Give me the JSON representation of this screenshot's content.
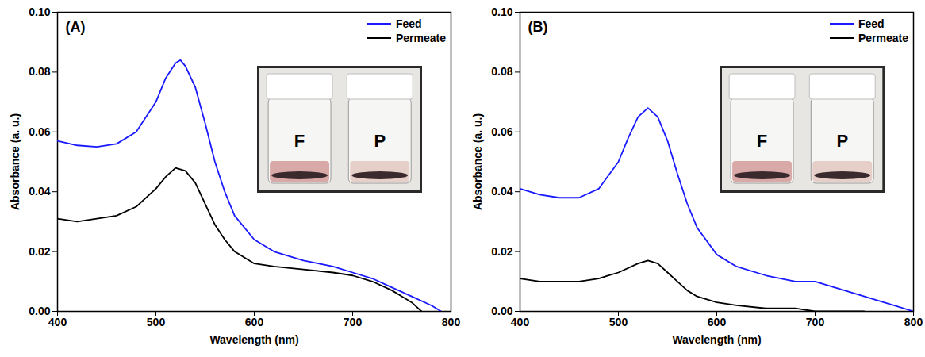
{
  "chart_data": [
    {
      "type": "line",
      "title": "(A)",
      "x_label": "Wavelength (nm)",
      "y_label": "Absorbance (a. u.)",
      "xlim": [
        400,
        800
      ],
      "ylim": [
        0,
        0.1
      ],
      "xticks": [
        400,
        500,
        600,
        700,
        800
      ],
      "yticks": [
        {
          "value": 0,
          "label": "0.00"
        },
        {
          "value": 0.02,
          "label": "0.02"
        },
        {
          "value": 0.04,
          "label": "0.04"
        },
        {
          "value": 0.06,
          "label": "0.06"
        },
        {
          "value": 0.08,
          "label": "0.08"
        },
        {
          "value": 0.1,
          "label": "0.10"
        }
      ],
      "legend": "top-right",
      "grid": false,
      "annotations": [
        "F",
        "P"
      ],
      "series": [
        {
          "name": "Feed",
          "color": "#1a1aff",
          "x": [
            400,
            420,
            440,
            460,
            480,
            500,
            510,
            520,
            525,
            530,
            540,
            550,
            560,
            570,
            580,
            600,
            620,
            650,
            680,
            700,
            720,
            740,
            760,
            780,
            790
          ],
          "values": [
            0.057,
            0.0555,
            0.055,
            0.056,
            0.06,
            0.07,
            0.078,
            0.083,
            0.084,
            0.082,
            0.075,
            0.063,
            0.05,
            0.04,
            0.032,
            0.024,
            0.02,
            0.017,
            0.015,
            0.013,
            0.011,
            0.008,
            0.005,
            0.002,
            0
          ]
        },
        {
          "name": "Permeate",
          "color": "#000000",
          "x": [
            400,
            420,
            440,
            460,
            480,
            500,
            510,
            520,
            530,
            540,
            550,
            560,
            570,
            580,
            600,
            620,
            650,
            680,
            700,
            720,
            740,
            760,
            770
          ],
          "values": [
            0.031,
            0.03,
            0.031,
            0.032,
            0.035,
            0.041,
            0.045,
            0.048,
            0.047,
            0.043,
            0.036,
            0.029,
            0.024,
            0.02,
            0.016,
            0.015,
            0.014,
            0.013,
            0.012,
            0.01,
            0.007,
            0.003,
            0
          ]
        }
      ]
    },
    {
      "type": "line",
      "title": "(B)",
      "x_label": "Wavelength (nm)",
      "y_label": "Absorbance (a. u.)",
      "xlim": [
        400,
        800
      ],
      "ylim": [
        0,
        0.1
      ],
      "xticks": [
        400,
        500,
        600,
        700,
        800
      ],
      "yticks": [
        {
          "value": 0,
          "label": "0.00"
        },
        {
          "value": 0.02,
          "label": "0.02"
        },
        {
          "value": 0.04,
          "label": "0.04"
        },
        {
          "value": 0.06,
          "label": "0.06"
        },
        {
          "value": 0.08,
          "label": "0.08"
        },
        {
          "value": 0.1,
          "label": "0.10"
        }
      ],
      "legend": "top-right",
      "grid": false,
      "annotations": [
        "F",
        "P"
      ],
      "series": [
        {
          "name": "Feed",
          "color": "#1a1aff",
          "x": [
            400,
            420,
            440,
            460,
            480,
            500,
            510,
            520,
            530,
            540,
            550,
            560,
            570,
            580,
            600,
            620,
            650,
            680,
            700,
            720,
            740,
            760,
            780,
            800
          ],
          "values": [
            0.041,
            0.039,
            0.038,
            0.038,
            0.041,
            0.05,
            0.058,
            0.065,
            0.068,
            0.065,
            0.057,
            0.046,
            0.036,
            0.028,
            0.019,
            0.015,
            0.012,
            0.01,
            0.01,
            0.008,
            0.006,
            0.004,
            0.002,
            0
          ]
        },
        {
          "name": "Permeate",
          "color": "#000000",
          "x": [
            400,
            420,
            440,
            460,
            480,
            500,
            520,
            530,
            540,
            550,
            560,
            570,
            580,
            600,
            620,
            650,
            680,
            700,
            750
          ],
          "values": [
            0.011,
            0.01,
            0.01,
            0.01,
            0.011,
            0.013,
            0.016,
            0.017,
            0.016,
            0.013,
            0.01,
            0.007,
            0.005,
            0.003,
            0.002,
            0.001,
            0.001,
            0,
            0
          ]
        }
      ]
    }
  ]
}
